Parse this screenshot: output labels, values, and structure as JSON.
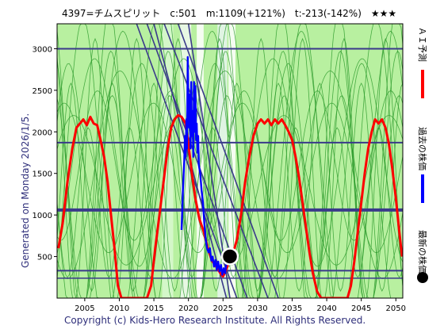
{
  "header": {
    "title": "4397=チムスピリット　c:501　m:1109(+121%)　t:-213(-142%)　★★★"
  },
  "side_label": "Generated on Monday 2026/1/5.",
  "footer": "Copyright (c) Kids-Hero Research Institute. All Rights Reserved.",
  "legend": [
    {
      "label": "ＡＩ予測",
      "color": "#ff0000",
      "marker": "line"
    },
    {
      "label": "過去の株価",
      "color": "#0000ff",
      "marker": "line"
    },
    {
      "label": "最新の株価",
      "color": "#000000",
      "marker": "dot"
    }
  ],
  "colors": {
    "plot_bg": "#b8f0a0",
    "forecast": "#ff0000",
    "price": "#0000ff",
    "green_lines": "#2a9a2a",
    "trend_lines": "#3a3a8a",
    "hlines": "#3a3a8a"
  },
  "chart_data": {
    "type": "line",
    "title": "4397=チムスピリット　c:501　m:1109(+121%)　t:-213(-142%)　★★★",
    "xlabel": "",
    "ylabel": "",
    "xlim": [
      2001,
      2051
    ],
    "ylim": [
      0,
      3300
    ],
    "x_ticks": [
      2005,
      2010,
      2015,
      2020,
      2025,
      2030,
      2035,
      2040,
      2045,
      2050
    ],
    "y_ticks": [
      500,
      1000,
      1500,
      2000,
      2500,
      3000
    ],
    "grid": false,
    "legend_position": "right",
    "horizontal_lines": [
      {
        "y": 3000,
        "width": 2
      },
      {
        "y": 1870,
        "width": 2
      },
      {
        "y": 1060,
        "width": 4
      },
      {
        "y": 330,
        "width": 2
      },
      {
        "y": 240,
        "width": 1.5
      }
    ],
    "series": [
      {
        "name": "ＡＩ予測",
        "color": "#ff0000",
        "points": [
          [
            2001.2,
            600
          ],
          [
            2001.8,
            900
          ],
          [
            2002.5,
            1400
          ],
          [
            2003.2,
            1800
          ],
          [
            2003.8,
            2050
          ],
          [
            2004.3,
            2100
          ],
          [
            2004.8,
            2150
          ],
          [
            2005.3,
            2080
          ],
          [
            2005.8,
            2180
          ],
          [
            2006.3,
            2100
          ],
          [
            2006.8,
            2080
          ],
          [
            2007.3,
            1900
          ],
          [
            2007.8,
            1700
          ],
          [
            2008.3,
            1400
          ],
          [
            2008.8,
            1000
          ],
          [
            2009.3,
            600
          ],
          [
            2009.8,
            150
          ],
          [
            2010.3,
            0
          ],
          [
            2014.0,
            0
          ],
          [
            2014.6,
            150
          ],
          [
            2015.2,
            600
          ],
          [
            2015.8,
            1000
          ],
          [
            2016.4,
            1400
          ],
          [
            2017.0,
            1800
          ],
          [
            2017.5,
            2050
          ],
          [
            2018.0,
            2150
          ],
          [
            2018.5,
            2200
          ],
          [
            2019.0,
            2180
          ],
          [
            2019.6,
            2100
          ],
          [
            2020.0,
            1850
          ],
          [
            2020.5,
            1500
          ],
          [
            2021.0,
            1200
          ],
          [
            2021.6,
            950
          ],
          [
            2022.2,
            800
          ],
          [
            2022.8,
            600
          ],
          [
            2023.4,
            450
          ],
          [
            2024.0,
            380
          ],
          [
            2024.6,
            300
          ],
          [
            2025.0,
            260
          ],
          [
            2025.4,
            330
          ],
          [
            2025.8,
            420
          ],
          [
            2026.4,
            520
          ],
          [
            2027.0,
            700
          ],
          [
            2027.6,
            1000
          ],
          [
            2028.2,
            1400
          ],
          [
            2028.8,
            1700
          ],
          [
            2029.4,
            1950
          ],
          [
            2030.0,
            2100
          ],
          [
            2030.5,
            2150
          ],
          [
            2031.0,
            2100
          ],
          [
            2031.5,
            2150
          ],
          [
            2032.0,
            2080
          ],
          [
            2032.5,
            2150
          ],
          [
            2033.0,
            2100
          ],
          [
            2033.5,
            2150
          ],
          [
            2034.0,
            2080
          ],
          [
            2034.5,
            2000
          ],
          [
            2035.0,
            1900
          ],
          [
            2035.5,
            1700
          ],
          [
            2036.0,
            1450
          ],
          [
            2036.5,
            1150
          ],
          [
            2037.0,
            850
          ],
          [
            2037.5,
            550
          ],
          [
            2038.0,
            300
          ],
          [
            2038.6,
            80
          ],
          [
            2039.2,
            0
          ],
          [
            2043.0,
            0
          ],
          [
            2043.5,
            150
          ],
          [
            2044.0,
            450
          ],
          [
            2044.5,
            800
          ],
          [
            2045.0,
            1150
          ],
          [
            2045.5,
            1500
          ],
          [
            2046.0,
            1800
          ],
          [
            2046.5,
            2000
          ],
          [
            2047.0,
            2150
          ],
          [
            2047.5,
            2100
          ],
          [
            2048.0,
            2150
          ],
          [
            2048.5,
            2050
          ],
          [
            2049.0,
            1850
          ],
          [
            2049.5,
            1550
          ],
          [
            2050.0,
            1200
          ],
          [
            2050.5,
            800
          ],
          [
            2050.9,
            500
          ]
        ]
      },
      {
        "name": "過去の株価",
        "color": "#0000ff",
        "points": [
          [
            2019.0,
            820
          ],
          [
            2019.2,
            1300
          ],
          [
            2019.4,
            1650
          ],
          [
            2019.5,
            1950
          ],
          [
            2019.6,
            1700
          ],
          [
            2019.7,
            2150
          ],
          [
            2019.8,
            1800
          ],
          [
            2019.9,
            2900
          ],
          [
            2020.0,
            2300
          ],
          [
            2020.1,
            2050
          ],
          [
            2020.2,
            2450
          ],
          [
            2020.3,
            1800
          ],
          [
            2020.4,
            2600
          ],
          [
            2020.5,
            1950
          ],
          [
            2020.6,
            2250
          ],
          [
            2020.7,
            1700
          ],
          [
            2020.8,
            2600
          ],
          [
            2020.9,
            2000
          ],
          [
            2021.0,
            2550
          ],
          [
            2021.1,
            1900
          ],
          [
            2021.2,
            2100
          ],
          [
            2021.3,
            1750
          ],
          [
            2021.4,
            1950
          ],
          [
            2021.5,
            1600
          ],
          [
            2021.7,
            1500
          ],
          [
            2021.9,
            1300
          ],
          [
            2022.1,
            1150
          ],
          [
            2022.3,
            900
          ],
          [
            2022.5,
            700
          ],
          [
            2022.7,
            600
          ],
          [
            2022.9,
            550
          ],
          [
            2023.1,
            600
          ],
          [
            2023.3,
            450
          ],
          [
            2023.5,
            500
          ],
          [
            2023.7,
            380
          ],
          [
            2023.9,
            460
          ],
          [
            2024.1,
            340
          ],
          [
            2024.3,
            440
          ],
          [
            2024.5,
            320
          ],
          [
            2024.7,
            400
          ],
          [
            2024.9,
            280
          ],
          [
            2025.1,
            360
          ],
          [
            2025.3,
            300
          ],
          [
            2025.5,
            420
          ],
          [
            2025.7,
            480
          ],
          [
            2025.9,
            500
          ]
        ]
      }
    ],
    "latest_point": {
      "x": 2026.0,
      "y": 501
    },
    "trend_lines": [
      {
        "from": [
          2012.5,
          3300
        ],
        "to": [
          2027.0,
          0
        ]
      },
      {
        "from": [
          2014.0,
          3300
        ],
        "to": [
          2028.5,
          0
        ]
      },
      {
        "from": [
          2016.5,
          3300
        ],
        "to": [
          2031.5,
          0
        ]
      },
      {
        "from": [
          2018.5,
          3300
        ],
        "to": [
          2033.0,
          0
        ]
      },
      {
        "from": [
          2020.0,
          3300
        ],
        "to": [
          2026.0,
          0
        ]
      },
      {
        "from": [
          2015.0,
          3300
        ],
        "to": [
          2025.5,
          0
        ]
      }
    ]
  }
}
